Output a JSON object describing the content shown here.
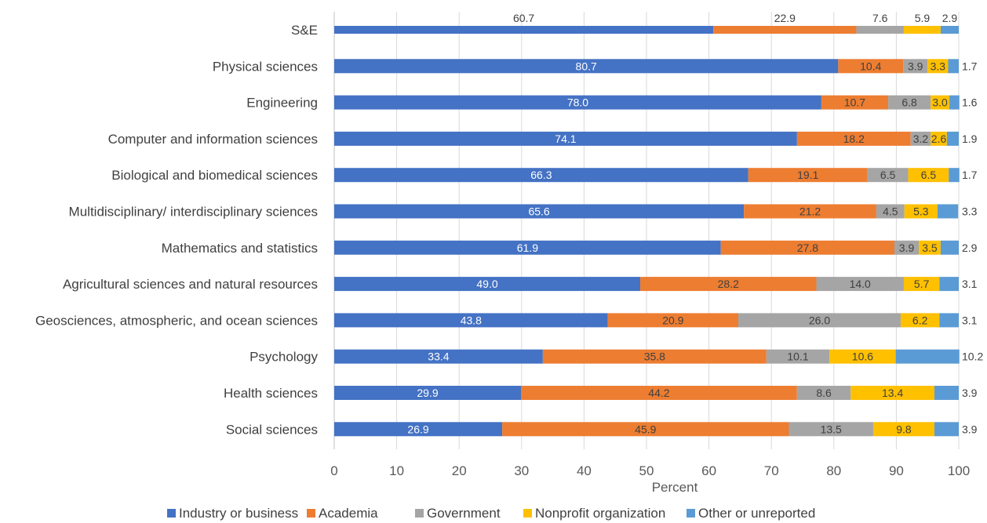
{
  "chart_data": {
    "type": "bar",
    "orientation": "horizontal-stacked",
    "xlabel": "Percent",
    "xlim": [
      0,
      100
    ],
    "xticks": [
      0,
      10,
      20,
      30,
      40,
      50,
      60,
      70,
      80,
      90,
      100
    ],
    "grid": true,
    "legend_position": "bottom",
    "categories": [
      "S&E",
      "Physical sciences",
      "Engineering",
      "Computer and information sciences",
      "Biological and biomedical sciences",
      "Multidisciplinary/ interdisciplinary sciences",
      "Mathematics and statistics",
      "Agricultural sciences and natural resources",
      "Geosciences, atmospheric, and ocean sciences",
      "Psychology",
      "Health sciences",
      "Social sciences"
    ],
    "series": [
      {
        "name": "Industry or business",
        "color": "#4472C4",
        "label_color": "#ffffff",
        "values": [
          60.7,
          80.7,
          78.0,
          74.1,
          66.3,
          65.6,
          61.9,
          49.0,
          43.8,
          33.4,
          29.9,
          26.9
        ]
      },
      {
        "name": "Academia",
        "color": "#ED7D31",
        "label_color": "#404040",
        "values": [
          22.9,
          10.4,
          10.7,
          18.2,
          19.1,
          21.2,
          27.8,
          28.2,
          20.9,
          35.8,
          44.2,
          45.9
        ]
      },
      {
        "name": "Government",
        "color": "#A5A5A5",
        "label_color": "#404040",
        "values": [
          7.6,
          3.9,
          6.8,
          3.2,
          6.5,
          4.5,
          3.9,
          14.0,
          26.0,
          10.1,
          8.6,
          13.5
        ]
      },
      {
        "name": "Nonprofit organization",
        "color": "#FFC000",
        "label_color": "#404040",
        "values": [
          5.9,
          3.3,
          3.0,
          2.6,
          6.5,
          5.3,
          3.5,
          5.7,
          6.2,
          10.6,
          13.4,
          9.8
        ]
      },
      {
        "name": "Other or unreported",
        "color": "#5B9BD5",
        "label_color": "#404040",
        "values": [
          2.9,
          1.7,
          1.6,
          1.9,
          1.7,
          3.3,
          2.9,
          3.1,
          3.1,
          10.2,
          3.9,
          3.9
        ]
      }
    ]
  }
}
